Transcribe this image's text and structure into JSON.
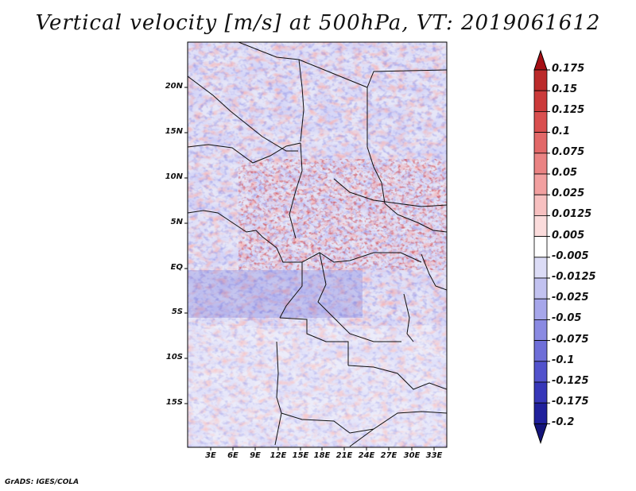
{
  "title": "Vertical velocity [m/s] at 500hPa, VT: 2019061612",
  "credit": "GrADS: IGES/COLA",
  "map": {
    "lat_labels": [
      "20N",
      "15N",
      "10N",
      "5N",
      "EQ",
      "5S",
      "10S",
      "15S"
    ],
    "lon_labels": [
      "3E",
      "6E",
      "9E",
      "12E",
      "15E",
      "18E",
      "21E",
      "24E",
      "27E",
      "30E",
      "33E"
    ]
  },
  "colorbar": {
    "labels": [
      "0.175",
      "0.15",
      "0.125",
      "0.1",
      "0.075",
      "0.05",
      "0.025",
      "0.0125",
      "0.005",
      "-0.005",
      "-0.0125",
      "-0.025",
      "-0.05",
      "-0.075",
      "-0.1",
      "-0.125",
      "-0.175",
      "-0.2"
    ],
    "colors": [
      "#a50f15",
      "#bb2a2a",
      "#cb3a3a",
      "#d94f4f",
      "#e26868",
      "#ea8383",
      "#f2a0a0",
      "#f7c0c0",
      "#fbdcdc",
      "#ffffff",
      "#dcdcf6",
      "#c2c2f0",
      "#a6a6ea",
      "#8a8ae2",
      "#6e6ed8",
      "#5252cc",
      "#3636b8",
      "#20209c",
      "#14147a"
    ]
  }
}
